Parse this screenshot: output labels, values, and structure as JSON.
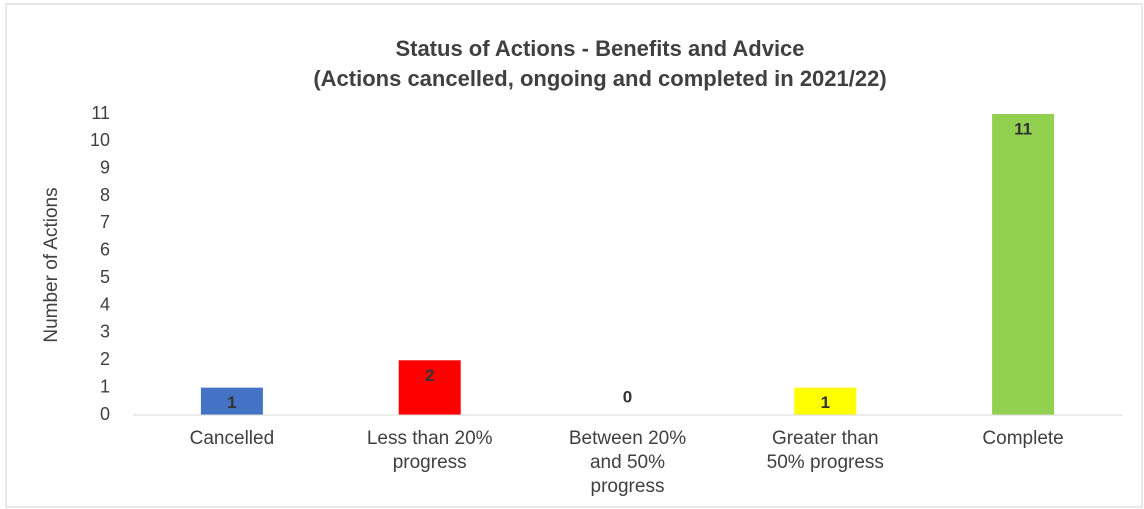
{
  "chart_data": {
    "type": "bar",
    "title": "Status of Actions - Benefits and Advice",
    "subtitle": "(Actions cancelled, ongoing and completed in 2021/22)",
    "y_label": "Number of Actions",
    "categories": [
      "Cancelled",
      "Less than 20% progress",
      "Between 20% and 50% progress",
      "Greater than 50% progress",
      "Complete"
    ],
    "values": [
      1,
      2,
      0,
      1,
      11
    ],
    "colors": [
      "#4472c4",
      "#ff0000",
      "#ffc000",
      "#ffff00",
      "#92d050"
    ],
    "ylim": [
      0,
      11
    ],
    "yticks": [
      0,
      1,
      2,
      3,
      4,
      5,
      6,
      7,
      8,
      9,
      10,
      11
    ],
    "grid": false
  }
}
